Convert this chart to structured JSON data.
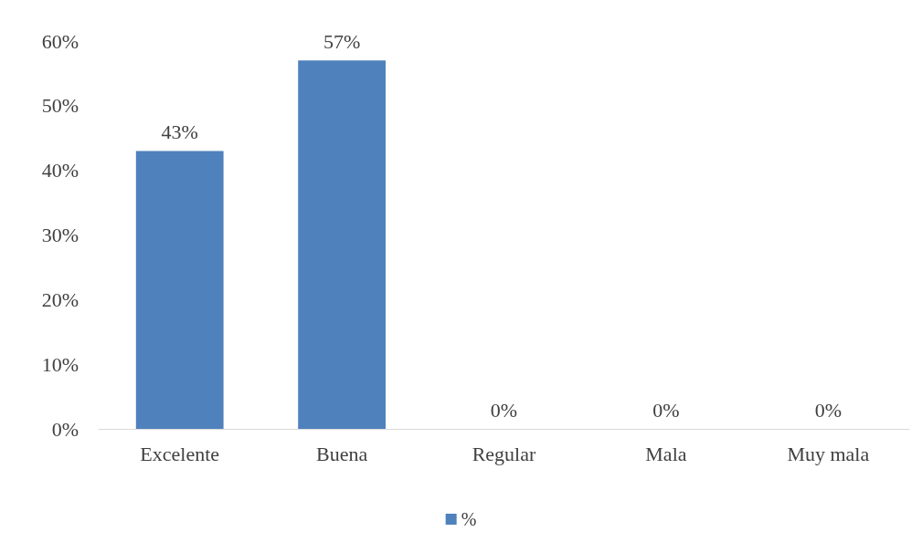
{
  "chart_data": {
    "type": "bar",
    "categories": [
      "Excelente",
      "Buena",
      "Regular",
      "Mala",
      "Muy mala"
    ],
    "series": [
      {
        "name": "%",
        "color": "#4f81bd",
        "values": [
          43,
          57,
          0,
          0,
          0
        ],
        "value_labels": [
          "43%",
          "57%",
          "0%",
          "0%",
          "0%"
        ]
      }
    ],
    "ylim": [
      0,
      60
    ],
    "yticks": [
      {
        "value": 0,
        "label": "0%"
      },
      {
        "value": 10,
        "label": "10%"
      },
      {
        "value": 20,
        "label": "20%"
      },
      {
        "value": 30,
        "label": "30%"
      },
      {
        "value": 40,
        "label": "40%"
      },
      {
        "value": 50,
        "label": "50%"
      },
      {
        "value": 60,
        "label": "60%"
      }
    ],
    "grid": false,
    "legend": "bottom"
  }
}
